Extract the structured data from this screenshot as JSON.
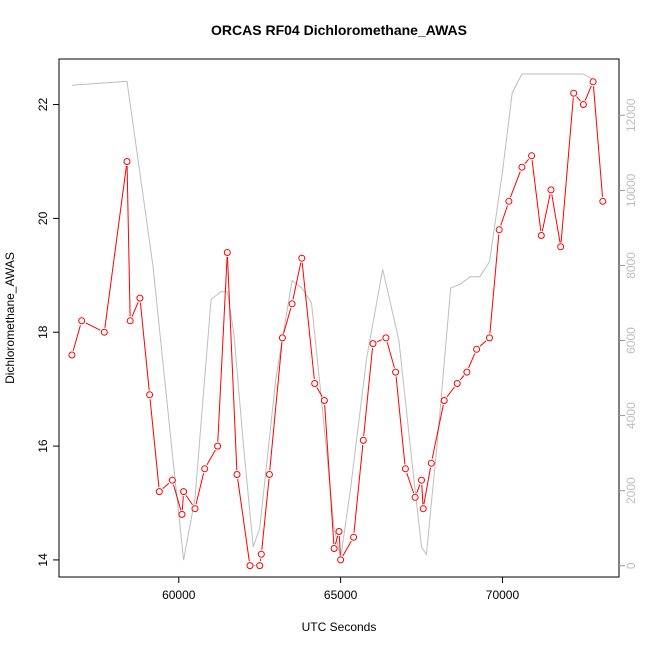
{
  "chart_data": {
    "type": "line",
    "title": "ORCAS RF04 Dichloromethane_AWAS",
    "xlabel": "UTC Seconds",
    "ylabel": "Dichloromethane_AWAS",
    "xlim": [
      56300,
      73600
    ],
    "ylim": [
      13.7,
      22.8
    ],
    "y2lim": [
      -300,
      13500
    ],
    "x_ticks": [
      60000,
      65000,
      70000
    ],
    "y_ticks": [
      14,
      16,
      18,
      20,
      22
    ],
    "y2_ticks": [
      0,
      2000,
      4000,
      6000,
      8000,
      10000,
      12000
    ],
    "grid": false,
    "series": [
      {
        "axis": "left",
        "color": "#ff0000",
        "marker": "circle",
        "x": [
          56700,
          57000,
          57700,
          58400,
          58500,
          58800,
          59100,
          59400,
          59800,
          60100,
          60150,
          60500,
          60800,
          61200,
          61500,
          61800,
          62200,
          62500,
          62550,
          62800,
          63200,
          63500,
          63800,
          64200,
          64500,
          64800,
          64950,
          65000,
          65400,
          65700,
          66000,
          66400,
          66700,
          67000,
          67300,
          67500,
          67550,
          67800,
          68200,
          68600,
          68900,
          69200,
          69600,
          69900,
          70200,
          70600,
          70900,
          71200,
          71500,
          71800,
          72200,
          72500,
          72800,
          73100
        ],
        "y": [
          17.6,
          18.2,
          18.0,
          21.0,
          18.2,
          18.6,
          16.9,
          15.2,
          15.4,
          14.8,
          15.2,
          14.9,
          15.6,
          16.0,
          19.4,
          15.5,
          13.9,
          13.9,
          14.1,
          15.5,
          17.9,
          18.5,
          19.3,
          17.1,
          16.8,
          14.2,
          14.5,
          14.0,
          14.4,
          16.1,
          17.8,
          17.9,
          17.3,
          15.6,
          15.1,
          15.4,
          14.9,
          15.7,
          16.8,
          17.1,
          17.3,
          17.7,
          17.9,
          19.8,
          20.3,
          20.9,
          21.1,
          19.7,
          20.5,
          19.5,
          22.2,
          22.0,
          22.4,
          20.3
        ]
      },
      {
        "axis": "right",
        "color": "#bebebe",
        "marker": "none",
        "x": [
          56700,
          58300,
          58400,
          58500,
          59200,
          59800,
          60150,
          60500,
          61000,
          61300,
          61500,
          61700,
          62000,
          62300,
          62500,
          63000,
          63500,
          63800,
          64100,
          64400,
          64800,
          65000,
          65300,
          65800,
          66300,
          66800,
          67200,
          67500,
          67650,
          68000,
          68400,
          68700,
          69000,
          69300,
          69600,
          70000,
          70300,
          70600,
          71000,
          71800,
          72500,
          72900
        ],
        "y": [
          12800,
          12900,
          12900,
          12300,
          8000,
          3000,
          150,
          1800,
          7100,
          7300,
          7300,
          6200,
          3200,
          500,
          1000,
          5000,
          7600,
          7400,
          7000,
          4500,
          1000,
          200,
          2000,
          5500,
          7900,
          6000,
          2800,
          500,
          300,
          3400,
          7400,
          7500,
          7700,
          7700,
          8100,
          10500,
          12600,
          13100,
          13100,
          13100,
          13100,
          12900
        ]
      }
    ]
  }
}
